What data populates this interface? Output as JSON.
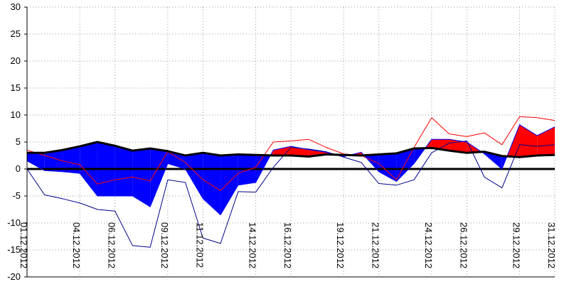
{
  "chart_data": {
    "type": "area",
    "title": "",
    "xlabel": "",
    "ylabel": "",
    "ylim": [
      -20,
      30
    ],
    "yticks": [
      "30",
      "25",
      "20",
      "15",
      "10",
      "5",
      "0",
      "-5",
      "-10",
      "-15",
      "-20"
    ],
    "grid": true,
    "x": [
      "01.12.2012",
      "02.12.2012",
      "03.12.2012",
      "04.12.2012",
      "05.12.2012",
      "06.12.2012",
      "07.12.2012",
      "08.12.2012",
      "09.12.2012",
      "10.12.2012",
      "11.12.2012",
      "12.12.2012",
      "13.12.2012",
      "14.12.2012",
      "15.12.2012",
      "16.12.2012",
      "17.12.2012",
      "18.12.2012",
      "19.12.2012",
      "20.12.2012",
      "21.12.2012",
      "22.12.2012",
      "23.12.2012",
      "24.12.2012",
      "25.12.2012",
      "26.12.2012",
      "27.12.2012",
      "28.12.2012",
      "29.12.2012",
      "30.12.2012",
      "31.12.2012"
    ],
    "xtick_labels": [
      "01.12.2012",
      "04.12.2012",
      "06.12.2012",
      "09.12.2012",
      "11.12.2012",
      "14.12.2012",
      "16.12.2012",
      "19.12.2012",
      "21.12.2012",
      "24.12.2012",
      "26.12.2012",
      "29.12.2012",
      "31.12.2012"
    ],
    "series": [
      {
        "role": "reference",
        "color": "#000000",
        "values": [
          3.0,
          3.0,
          3.5,
          4.2,
          5.0,
          4.3,
          3.4,
          3.8,
          3.3,
          2.5,
          3.0,
          2.5,
          2.7,
          2.6,
          2.5,
          2.5,
          2.3,
          2.7,
          2.6,
          2.5,
          2.7,
          2.9,
          3.8,
          3.9,
          3.4,
          3.0,
          3.2,
          2.4,
          2.2,
          2.5,
          2.6
        ]
      },
      {
        "role": "actual",
        "color": "#0000ff",
        "values": [
          1.5,
          -0.3,
          -0.5,
          -0.8,
          -5.0,
          -5.0,
          -5.0,
          -7.0,
          1.0,
          0.0,
          -5.5,
          -8.5,
          -3.0,
          -2.5,
          3.5,
          4.2,
          3.6,
          3.1,
          2.3,
          3.1,
          -0.5,
          -2.3,
          1.0,
          5.5,
          5.5,
          5.0,
          2.8,
          0.0,
          8.2,
          6.2,
          7.8
        ]
      },
      {
        "role": "upper",
        "color": "#ff0000",
        "values": [
          3.5,
          2.5,
          1.5,
          0.8,
          -2.8,
          -2.0,
          -1.5,
          -2.2,
          3.2,
          1.2,
          -2.0,
          -4.0,
          -0.8,
          0.3,
          5.0,
          5.2,
          5.5,
          4.0,
          2.8,
          2.5,
          1.0,
          -2.0,
          4.0,
          9.5,
          6.5,
          6.0,
          6.7,
          4.5,
          9.7,
          9.5,
          9.0
        ]
      },
      {
        "role": "lower",
        "color": "#00008b",
        "values": [
          0.0,
          -4.8,
          -5.5,
          -6.3,
          -7.5,
          -7.8,
          -14.2,
          -14.5,
          -2.0,
          -2.5,
          -12.8,
          -13.8,
          -4.2,
          -4.3,
          0.3,
          4.0,
          3.7,
          3.2,
          2.2,
          1.2,
          -2.7,
          -3.0,
          -2.0,
          3.0,
          4.8,
          5.2,
          -1.5,
          -3.5,
          4.5,
          4.2,
          4.5
        ]
      }
    ]
  }
}
